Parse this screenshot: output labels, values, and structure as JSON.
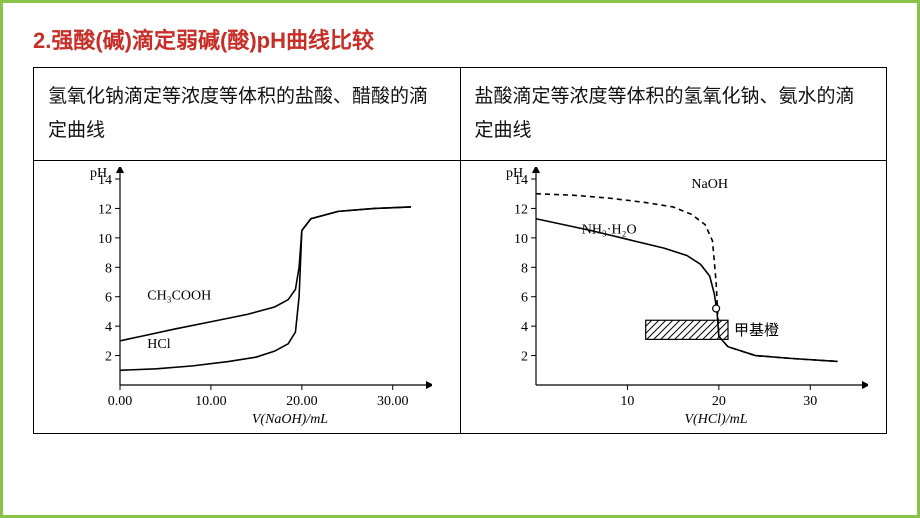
{
  "title": "2.强酸(碱)滴定弱碱(酸)pH曲线比较",
  "colors": {
    "border": "#8bc34a",
    "title": "#c72e28",
    "line": "#000000",
    "bg": "#ffffff",
    "text": "#111111"
  },
  "table": {
    "left_header": "氢氧化钠滴定等浓度等体积的盐酸、醋酸的滴定曲线",
    "right_header": "盐酸滴定等浓度等体积的氢氧化钠、氨水的滴定曲线"
  },
  "chart_left": {
    "type": "line",
    "x_label": "V(NaOH)/mL",
    "y_label": "pH",
    "x_ticks": [
      0.0,
      10.0,
      20.0,
      30.0
    ],
    "y_ticks": [
      2,
      4,
      6,
      8,
      10,
      12,
      14
    ],
    "xlim": [
      0,
      33
    ],
    "ylim": [
      0,
      14
    ],
    "series": [
      {
        "name": "CH3COOH",
        "label": "CH₃COOH",
        "dash": false,
        "points": [
          [
            0,
            3.0
          ],
          [
            3,
            3.4
          ],
          [
            6,
            3.8
          ],
          [
            10,
            4.3
          ],
          [
            14,
            4.8
          ],
          [
            17,
            5.3
          ],
          [
            18.5,
            5.8
          ],
          [
            19.3,
            6.5
          ],
          [
            19.7,
            8.0
          ],
          [
            20,
            10.5
          ],
          [
            21,
            11.3
          ],
          [
            24,
            11.8
          ],
          [
            28,
            12.0
          ],
          [
            32,
            12.1
          ]
        ]
      },
      {
        "name": "HCl",
        "label": "HCl",
        "dash": false,
        "points": [
          [
            0,
            1.0
          ],
          [
            4,
            1.1
          ],
          [
            8,
            1.3
          ],
          [
            12,
            1.6
          ],
          [
            15,
            1.9
          ],
          [
            17,
            2.3
          ],
          [
            18.5,
            2.8
          ],
          [
            19.3,
            3.6
          ],
          [
            19.7,
            6.0
          ],
          [
            20,
            10.5
          ],
          [
            21,
            11.3
          ],
          [
            24,
            11.8
          ],
          [
            28,
            12.0
          ],
          [
            32,
            12.1
          ]
        ]
      }
    ],
    "label_positions": {
      "CH3COOH": [
        3,
        5.8
      ],
      "HCl": [
        3,
        2.5
      ]
    },
    "font_size": 14
  },
  "chart_right": {
    "type": "line",
    "x_label": "V(HCl)/mL",
    "y_label": "pH",
    "x_ticks": [
      10,
      20,
      30
    ],
    "y_ticks": [
      2,
      4,
      6,
      8,
      10,
      12,
      14
    ],
    "xlim": [
      0,
      35
    ],
    "ylim": [
      0,
      14
    ],
    "series": [
      {
        "name": "NaOH",
        "label": "NaOH",
        "dash": true,
        "points": [
          [
            0,
            13.0
          ],
          [
            4,
            12.9
          ],
          [
            8,
            12.7
          ],
          [
            12,
            12.4
          ],
          [
            15,
            12.1
          ],
          [
            17,
            11.6
          ],
          [
            18.5,
            10.9
          ],
          [
            19.3,
            9.8
          ],
          [
            19.7,
            7.0
          ],
          [
            20,
            3.3
          ],
          [
            21,
            2.6
          ],
          [
            24,
            2.0
          ],
          [
            28,
            1.8
          ],
          [
            33,
            1.6
          ]
        ]
      },
      {
        "name": "NH3H2O",
        "label": "NH₃·H₂O",
        "dash": false,
        "points": [
          [
            0,
            11.3
          ],
          [
            3,
            10.9
          ],
          [
            6,
            10.5
          ],
          [
            10,
            9.9
          ],
          [
            14,
            9.3
          ],
          [
            16.5,
            8.8
          ],
          [
            18,
            8.2
          ],
          [
            19,
            7.4
          ],
          [
            19.5,
            6.2
          ],
          [
            19.8,
            5.0
          ],
          [
            20,
            3.3
          ],
          [
            21,
            2.6
          ],
          [
            24,
            2.0
          ],
          [
            28,
            1.8
          ],
          [
            33,
            1.6
          ]
        ]
      }
    ],
    "label_positions": {
      "NaOH": [
        17,
        13.4
      ],
      "NH3H2O": [
        5,
        10.3
      ]
    },
    "indicator": {
      "label": "甲基橙",
      "y_range": [
        3.1,
        4.4
      ],
      "x_range": [
        12,
        21
      ]
    },
    "hollow_point": [
      19.7,
      5.2
    ],
    "font_size": 14
  }
}
